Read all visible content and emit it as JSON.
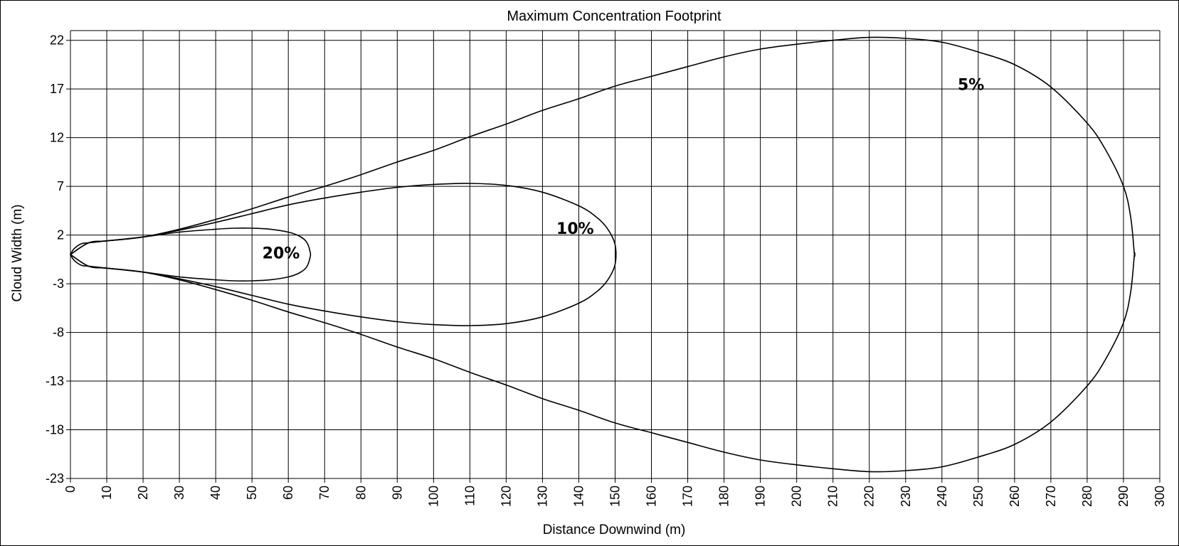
{
  "chart_data": {
    "type": "line",
    "title": "Maximum Concentration Footprint",
    "xlabel": "Distance Downwind (m)",
    "ylabel": "Cloud Width (m)",
    "xlim": [
      0,
      300
    ],
    "ylim": [
      -23,
      23
    ],
    "x_ticks": [
      0,
      10,
      20,
      30,
      40,
      50,
      60,
      70,
      80,
      90,
      100,
      110,
      120,
      130,
      140,
      150,
      160,
      170,
      180,
      190,
      200,
      210,
      220,
      230,
      240,
      250,
      260,
      270,
      280,
      290,
      300
    ],
    "y_ticks": [
      22,
      17,
      12,
      7,
      2,
      -3,
      -8,
      -13,
      -18,
      -23
    ],
    "grid": true,
    "legend": "none",
    "series": [
      {
        "name": "5%",
        "label_at": [
          248,
          17.5
        ],
        "x": [
          0,
          1,
          3,
          5,
          10,
          20,
          30,
          40,
          50,
          60,
          70,
          80,
          90,
          100,
          110,
          120,
          130,
          140,
          150,
          160,
          170,
          180,
          190,
          200,
          210,
          220,
          230,
          240,
          250,
          260,
          270,
          280,
          285,
          290,
          292,
          293
        ],
        "y": [
          0,
          0.6,
          1.1,
          1.2,
          1.4,
          1.8,
          2.6,
          3.6,
          4.7,
          5.9,
          7.0,
          8.2,
          9.5,
          10.7,
          12.1,
          13.4,
          14.8,
          16.0,
          17.3,
          18.3,
          19.3,
          20.3,
          21.1,
          21.6,
          22.0,
          22.3,
          22.2,
          21.8,
          20.8,
          19.5,
          17.2,
          13.5,
          10.8,
          7.0,
          3.8,
          0
        ]
      },
      {
        "name": "10%",
        "label_at": [
          139,
          2.7
        ],
        "x": [
          0,
          5,
          10,
          20,
          30,
          40,
          50,
          60,
          70,
          80,
          90,
          100,
          110,
          120,
          130,
          140,
          145,
          148,
          150
        ],
        "y": [
          0,
          1.2,
          1.4,
          1.8,
          2.5,
          3.3,
          4.2,
          5.1,
          5.8,
          6.4,
          6.9,
          7.2,
          7.3,
          7.1,
          6.4,
          5.0,
          3.8,
          2.6,
          1.0
        ]
      },
      {
        "name": "20%",
        "label_at": [
          58,
          0.2
        ],
        "x": [
          0,
          5,
          10,
          20,
          30,
          40,
          45,
          50,
          55,
          60,
          63,
          65,
          66
        ],
        "y": [
          0,
          1.2,
          1.4,
          1.8,
          2.3,
          2.6,
          2.7,
          2.7,
          2.6,
          2.3,
          1.9,
          1.3,
          0.3
        ]
      }
    ]
  }
}
